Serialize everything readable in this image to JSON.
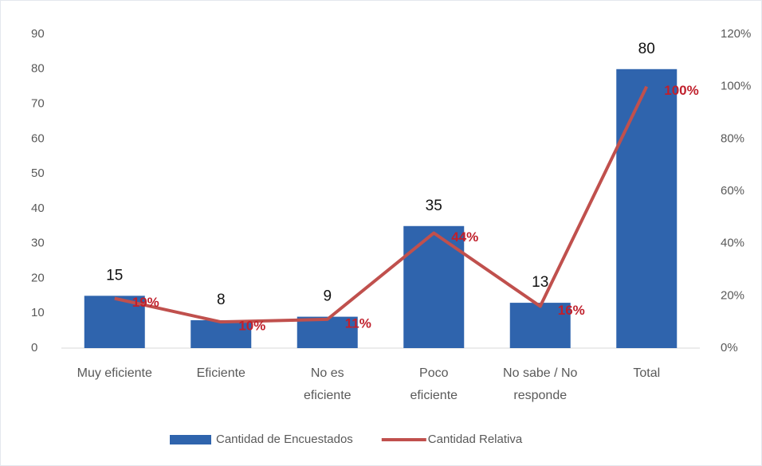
{
  "chart_data": {
    "type": "bar",
    "categories": [
      "Muy eficiente",
      "Eficiente",
      "No es eficiente",
      "Poco eficiente",
      "No sabe / No responde",
      "Total"
    ],
    "series": [
      {
        "name": "Cantidad de Encuestados",
        "color": "#2f64ad",
        "values": [
          15,
          8,
          9,
          35,
          13,
          80
        ]
      },
      {
        "name": "Cantidad Relativa",
        "type": "line",
        "axis": "y2",
        "color": "#c0504d",
        "values": [
          19,
          10,
          11,
          44,
          16,
          100
        ],
        "value_labels": [
          "19%",
          "10%",
          "11%",
          "44%",
          "16%",
          "100%"
        ]
      }
    ],
    "ylim": [
      0,
      90
    ],
    "yticks": [
      0,
      10,
      20,
      30,
      40,
      50,
      60,
      70,
      80,
      90
    ],
    "y2lim": [
      0,
      120
    ],
    "y2ticks": [
      {
        "value": 0,
        "label": "0%"
      },
      {
        "value": 20,
        "label": "20%"
      },
      {
        "value": 40,
        "label": "40%"
      },
      {
        "value": 60,
        "label": "60%"
      },
      {
        "value": 80,
        "label": "80%"
      },
      {
        "value": 100,
        "label": "100%"
      },
      {
        "value": 120,
        "label": "120%"
      }
    ],
    "legend": "bottom"
  }
}
